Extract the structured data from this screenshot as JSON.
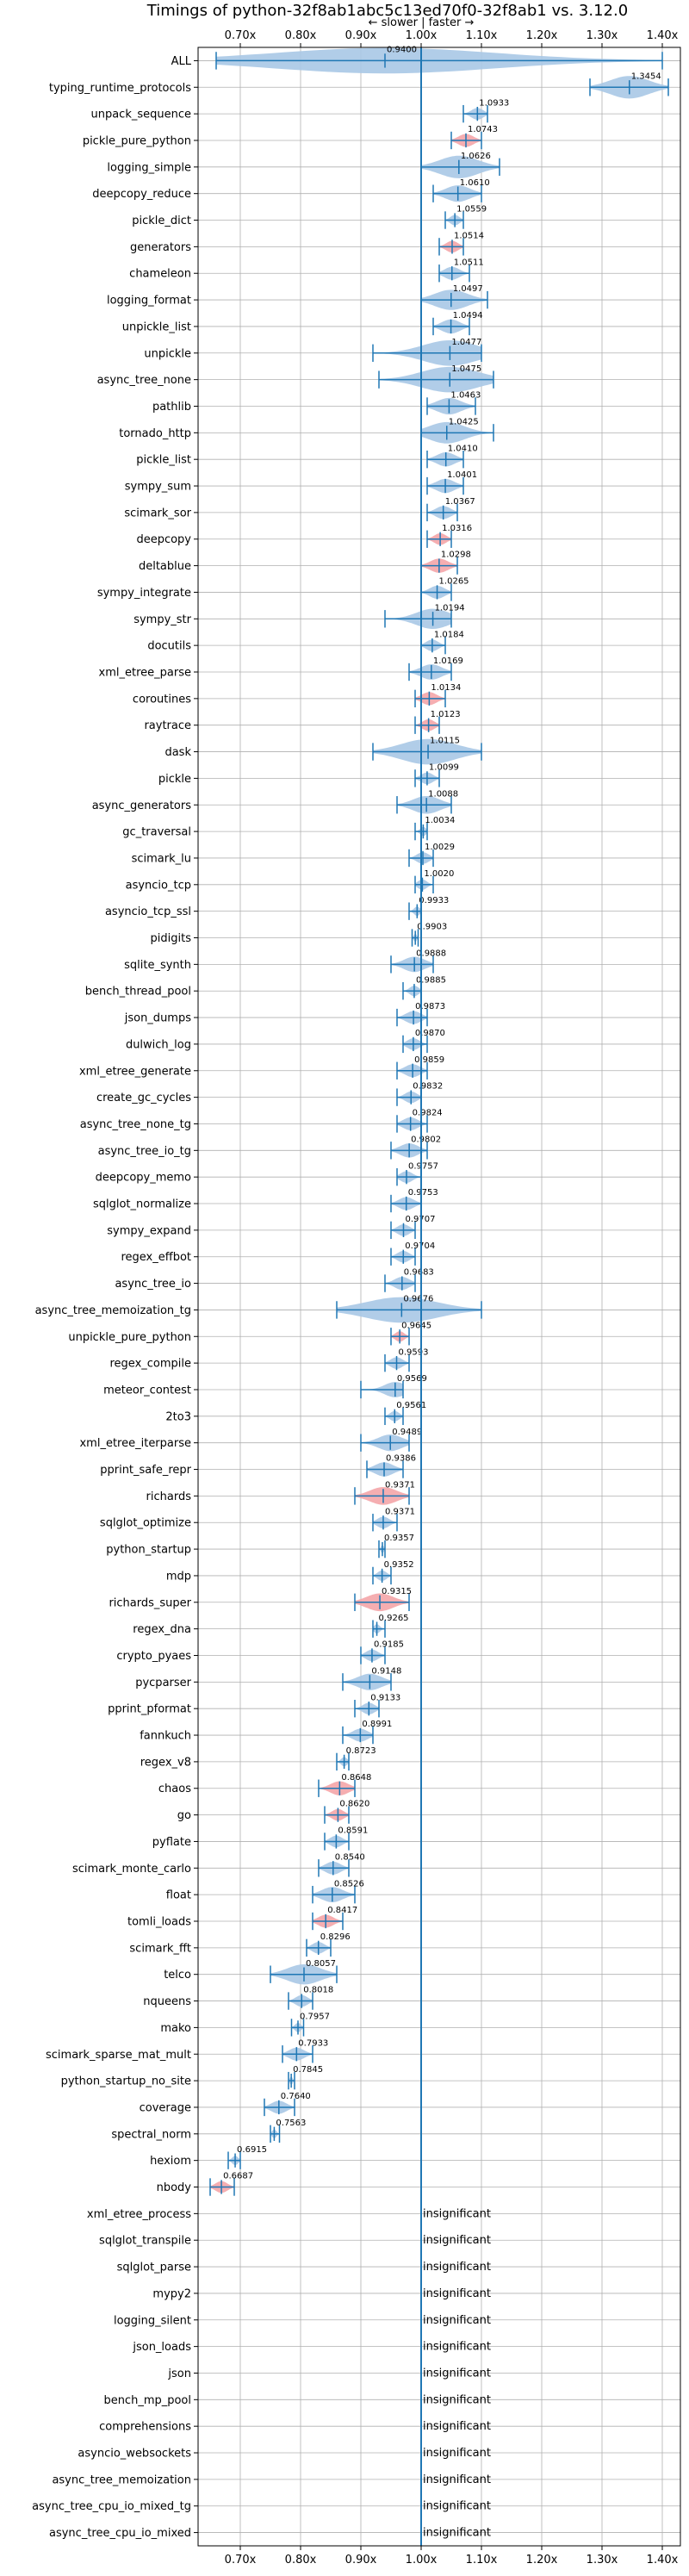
{
  "chart_data": {
    "type": "violin",
    "title": "Timings of python-32f8ab1abc5c13ed70f0-32f8ab1 vs. 3.12.0",
    "subtitle": "← slower | faster →",
    "xlim": [
      0.63,
      1.43
    ],
    "x_ticks": [
      0.7,
      0.8,
      0.9,
      1.0,
      1.1,
      1.2,
      1.3,
      1.4
    ],
    "x_tick_labels": [
      "0.70x",
      "0.80x",
      "0.90x",
      "1.00x",
      "1.10x",
      "1.20x",
      "1.30x",
      "1.40x"
    ],
    "grid": true,
    "insignificant_text": "insignificant",
    "series": [
      {
        "name": "ALL",
        "value": 0.94,
        "label": "0.9400",
        "lo": 0.66,
        "hi": 1.4
      },
      {
        "name": "typing_runtime_protocols",
        "value": 1.3454,
        "label": "1.3454",
        "lo": 1.28,
        "hi": 1.41
      },
      {
        "name": "unpack_sequence",
        "value": 1.0933,
        "label": "1.0933",
        "lo": 1.07,
        "hi": 1.11
      },
      {
        "name": "pickle_pure_python",
        "value": 1.0743,
        "label": "1.0743",
        "lo": 1.05,
        "hi": 1.1
      },
      {
        "name": "logging_simple",
        "value": 1.0626,
        "label": "1.0626",
        "lo": 1.0,
        "hi": 1.13
      },
      {
        "name": "deepcopy_reduce",
        "value": 1.061,
        "label": "1.0610",
        "lo": 1.02,
        "hi": 1.1
      },
      {
        "name": "pickle_dict",
        "value": 1.0559,
        "label": "1.0559",
        "lo": 1.04,
        "hi": 1.07
      },
      {
        "name": "generators",
        "value": 1.0514,
        "label": "1.0514",
        "lo": 1.03,
        "hi": 1.07
      },
      {
        "name": "chameleon",
        "value": 1.0511,
        "label": "1.0511",
        "lo": 1.03,
        "hi": 1.08
      },
      {
        "name": "logging_format",
        "value": 1.0497,
        "label": "1.0497",
        "lo": 1.0,
        "hi": 1.11
      },
      {
        "name": "unpickle_list",
        "value": 1.0494,
        "label": "1.0494",
        "lo": 1.02,
        "hi": 1.08
      },
      {
        "name": "unpickle",
        "value": 1.0477,
        "label": "1.0477",
        "lo": 0.92,
        "hi": 1.1
      },
      {
        "name": "async_tree_none",
        "value": 1.0475,
        "label": "1.0475",
        "lo": 0.93,
        "hi": 1.12
      },
      {
        "name": "pathlib",
        "value": 1.0463,
        "label": "1.0463",
        "lo": 1.01,
        "hi": 1.09
      },
      {
        "name": "tornado_http",
        "value": 1.0425,
        "label": "1.0425",
        "lo": 1.0,
        "hi": 1.12
      },
      {
        "name": "pickle_list",
        "value": 1.041,
        "label": "1.0410",
        "lo": 1.01,
        "hi": 1.07
      },
      {
        "name": "sympy_sum",
        "value": 1.0401,
        "label": "1.0401",
        "lo": 1.01,
        "hi": 1.07
      },
      {
        "name": "scimark_sor",
        "value": 1.0367,
        "label": "1.0367",
        "lo": 1.01,
        "hi": 1.06
      },
      {
        "name": "deepcopy",
        "value": 1.0316,
        "label": "1.0316",
        "lo": 1.01,
        "hi": 1.05
      },
      {
        "name": "deltablue",
        "value": 1.0298,
        "label": "1.0298",
        "lo": 1.0,
        "hi": 1.06
      },
      {
        "name": "sympy_integrate",
        "value": 1.0265,
        "label": "1.0265",
        "lo": 1.0,
        "hi": 1.05
      },
      {
        "name": "sympy_str",
        "value": 1.0194,
        "label": "1.0194",
        "lo": 0.94,
        "hi": 1.05
      },
      {
        "name": "docutils",
        "value": 1.0184,
        "label": "1.0184",
        "lo": 1.0,
        "hi": 1.04
      },
      {
        "name": "xml_etree_parse",
        "value": 1.0169,
        "label": "1.0169",
        "lo": 0.98,
        "hi": 1.05
      },
      {
        "name": "coroutines",
        "value": 1.0134,
        "label": "1.0134",
        "lo": 0.99,
        "hi": 1.04
      },
      {
        "name": "raytrace",
        "value": 1.0123,
        "label": "1.0123",
        "lo": 0.99,
        "hi": 1.03
      },
      {
        "name": "dask",
        "value": 1.0115,
        "label": "1.0115",
        "lo": 0.92,
        "hi": 1.1
      },
      {
        "name": "pickle",
        "value": 1.0099,
        "label": "1.0099",
        "lo": 0.99,
        "hi": 1.03
      },
      {
        "name": "async_generators",
        "value": 1.0088,
        "label": "1.0088",
        "lo": 0.96,
        "hi": 1.05
      },
      {
        "name": "gc_traversal",
        "value": 1.0034,
        "label": "1.0034",
        "lo": 0.99,
        "hi": 1.01
      },
      {
        "name": "scimark_lu",
        "value": 1.0029,
        "label": "1.0029",
        "lo": 0.98,
        "hi": 1.02
      },
      {
        "name": "asyncio_tcp",
        "value": 1.002,
        "label": "1.0020",
        "lo": 0.99,
        "hi": 1.02
      },
      {
        "name": "asyncio_tcp_ssl",
        "value": 0.9933,
        "label": "0.9933",
        "lo": 0.98,
        "hi": 1.0
      },
      {
        "name": "pidigits",
        "value": 0.9903,
        "label": "0.9903",
        "lo": 0.985,
        "hi": 0.995
      },
      {
        "name": "sqlite_synth",
        "value": 0.9888,
        "label": "0.9888",
        "lo": 0.95,
        "hi": 1.02
      },
      {
        "name": "bench_thread_pool",
        "value": 0.9885,
        "label": "0.9885",
        "lo": 0.97,
        "hi": 1.0
      },
      {
        "name": "json_dumps",
        "value": 0.9873,
        "label": "0.9873",
        "lo": 0.96,
        "hi": 1.01
      },
      {
        "name": "dulwich_log",
        "value": 0.987,
        "label": "0.9870",
        "lo": 0.97,
        "hi": 1.01
      },
      {
        "name": "xml_etree_generate",
        "value": 0.9859,
        "label": "0.9859",
        "lo": 0.96,
        "hi": 1.01
      },
      {
        "name": "create_gc_cycles",
        "value": 0.9832,
        "label": "0.9832",
        "lo": 0.96,
        "hi": 1.0
      },
      {
        "name": "async_tree_none_tg",
        "value": 0.9824,
        "label": "0.9824",
        "lo": 0.96,
        "hi": 1.01
      },
      {
        "name": "async_tree_io_tg",
        "value": 0.9802,
        "label": "0.9802",
        "lo": 0.95,
        "hi": 1.01
      },
      {
        "name": "deepcopy_memo",
        "value": 0.9757,
        "label": "0.9757",
        "lo": 0.96,
        "hi": 1.0
      },
      {
        "name": "sqlglot_normalize",
        "value": 0.9753,
        "label": "0.9753",
        "lo": 0.95,
        "hi": 1.0
      },
      {
        "name": "sympy_expand",
        "value": 0.9707,
        "label": "0.9707",
        "lo": 0.95,
        "hi": 0.99
      },
      {
        "name": "regex_effbot",
        "value": 0.9704,
        "label": "0.9704",
        "lo": 0.95,
        "hi": 0.99
      },
      {
        "name": "async_tree_io",
        "value": 0.9683,
        "label": "0.9683",
        "lo": 0.94,
        "hi": 0.99
      },
      {
        "name": "async_tree_memoization_tg",
        "value": 0.9676,
        "label": "0.9676",
        "lo": 0.86,
        "hi": 1.1
      },
      {
        "name": "unpickle_pure_python",
        "value": 0.9645,
        "label": "0.9645",
        "lo": 0.95,
        "hi": 0.98
      },
      {
        "name": "regex_compile",
        "value": 0.9593,
        "label": "0.9593",
        "lo": 0.94,
        "hi": 0.98
      },
      {
        "name": "meteor_contest",
        "value": 0.9569,
        "label": "0.9569",
        "lo": 0.9,
        "hi": 0.97
      },
      {
        "name": "2to3",
        "value": 0.9561,
        "label": "0.9561",
        "lo": 0.94,
        "hi": 0.97
      },
      {
        "name": "xml_etree_iterparse",
        "value": 0.9489,
        "label": "0.9489",
        "lo": 0.9,
        "hi": 0.98
      },
      {
        "name": "pprint_safe_repr",
        "value": 0.9386,
        "label": "0.9386",
        "lo": 0.91,
        "hi": 0.97
      },
      {
        "name": "richards",
        "value": 0.9371,
        "label": "0.9371",
        "lo": 0.89,
        "hi": 0.98
      },
      {
        "name": "sqlglot_optimize",
        "value": 0.9371,
        "label": "0.9371",
        "lo": 0.92,
        "hi": 0.96
      },
      {
        "name": "python_startup",
        "value": 0.9357,
        "label": "0.9357",
        "lo": 0.93,
        "hi": 0.94
      },
      {
        "name": "mdp",
        "value": 0.9352,
        "label": "0.9352",
        "lo": 0.92,
        "hi": 0.95
      },
      {
        "name": "richards_super",
        "value": 0.9315,
        "label": "0.9315",
        "lo": 0.89,
        "hi": 0.98
      },
      {
        "name": "regex_dna",
        "value": 0.9265,
        "label": "0.9265",
        "lo": 0.92,
        "hi": 0.94
      },
      {
        "name": "crypto_pyaes",
        "value": 0.9185,
        "label": "0.9185",
        "lo": 0.9,
        "hi": 0.94
      },
      {
        "name": "pycparser",
        "value": 0.9148,
        "label": "0.9148",
        "lo": 0.87,
        "hi": 0.95
      },
      {
        "name": "pprint_pformat",
        "value": 0.9133,
        "label": "0.9133",
        "lo": 0.89,
        "hi": 0.93
      },
      {
        "name": "fannkuch",
        "value": 0.8991,
        "label": "0.8991",
        "lo": 0.87,
        "hi": 0.92
      },
      {
        "name": "regex_v8",
        "value": 0.8723,
        "label": "0.8723",
        "lo": 0.86,
        "hi": 0.88
      },
      {
        "name": "chaos",
        "value": 0.8648,
        "label": "0.8648",
        "lo": 0.83,
        "hi": 0.89
      },
      {
        "name": "go",
        "value": 0.862,
        "label": "0.8620",
        "lo": 0.84,
        "hi": 0.88
      },
      {
        "name": "pyflate",
        "value": 0.8591,
        "label": "0.8591",
        "lo": 0.84,
        "hi": 0.88
      },
      {
        "name": "scimark_monte_carlo",
        "value": 0.854,
        "label": "0.8540",
        "lo": 0.83,
        "hi": 0.88
      },
      {
        "name": "float",
        "value": 0.8526,
        "label": "0.8526",
        "lo": 0.82,
        "hi": 0.89
      },
      {
        "name": "tomli_loads",
        "value": 0.8417,
        "label": "0.8417",
        "lo": 0.82,
        "hi": 0.87
      },
      {
        "name": "scimark_fft",
        "value": 0.8296,
        "label": "0.8296",
        "lo": 0.81,
        "hi": 0.85
      },
      {
        "name": "telco",
        "value": 0.8057,
        "label": "0.8057",
        "lo": 0.75,
        "hi": 0.86
      },
      {
        "name": "nqueens",
        "value": 0.8018,
        "label": "0.8018",
        "lo": 0.78,
        "hi": 0.82
      },
      {
        "name": "mako",
        "value": 0.7957,
        "label": "0.7957",
        "lo": 0.785,
        "hi": 0.805
      },
      {
        "name": "scimark_sparse_mat_mult",
        "value": 0.7933,
        "label": "0.7933",
        "lo": 0.77,
        "hi": 0.82
      },
      {
        "name": "python_startup_no_site",
        "value": 0.7845,
        "label": "0.7845",
        "lo": 0.78,
        "hi": 0.79
      },
      {
        "name": "coverage",
        "value": 0.764,
        "label": "0.7640",
        "lo": 0.74,
        "hi": 0.79
      },
      {
        "name": "spectral_norm",
        "value": 0.7563,
        "label": "0.7563",
        "lo": 0.75,
        "hi": 0.765
      },
      {
        "name": "hexiom",
        "value": 0.6915,
        "label": "0.6915",
        "lo": 0.68,
        "hi": 0.7
      },
      {
        "name": "nbody",
        "value": 0.6687,
        "label": "0.6687",
        "lo": 0.65,
        "hi": 0.69
      },
      {
        "name": "xml_etree_process",
        "insignificant": true
      },
      {
        "name": "sqlglot_transpile",
        "insignificant": true
      },
      {
        "name": "sqlglot_parse",
        "insignificant": true
      },
      {
        "name": "mypy2",
        "insignificant": true
      },
      {
        "name": "logging_silent",
        "insignificant": true
      },
      {
        "name": "json_loads",
        "insignificant": true
      },
      {
        "name": "json",
        "insignificant": true
      },
      {
        "name": "bench_mp_pool",
        "insignificant": true
      },
      {
        "name": "comprehensions",
        "insignificant": true
      },
      {
        "name": "asyncio_websockets",
        "insignificant": true
      },
      {
        "name": "async_tree_memoization",
        "insignificant": true
      },
      {
        "name": "async_tree_cpu_io_mixed_tg",
        "insignificant": true
      },
      {
        "name": "async_tree_cpu_io_mixed",
        "insignificant": true
      }
    ],
    "highlight_red": [
      "pickle_pure_python",
      "generators",
      "deepcopy",
      "deltablue",
      "coroutines",
      "raytrace",
      "unpickle_pure_python",
      "richards",
      "richards_super",
      "chaos",
      "go",
      "tomli_loads",
      "nbody"
    ],
    "colors": {
      "violin_blue": "#1f77b4",
      "violin_fill": "#a9c8e6",
      "violin_red_fill": "#f4a5a8",
      "grid": "#b0b0b0",
      "axis": "#000000"
    }
  }
}
